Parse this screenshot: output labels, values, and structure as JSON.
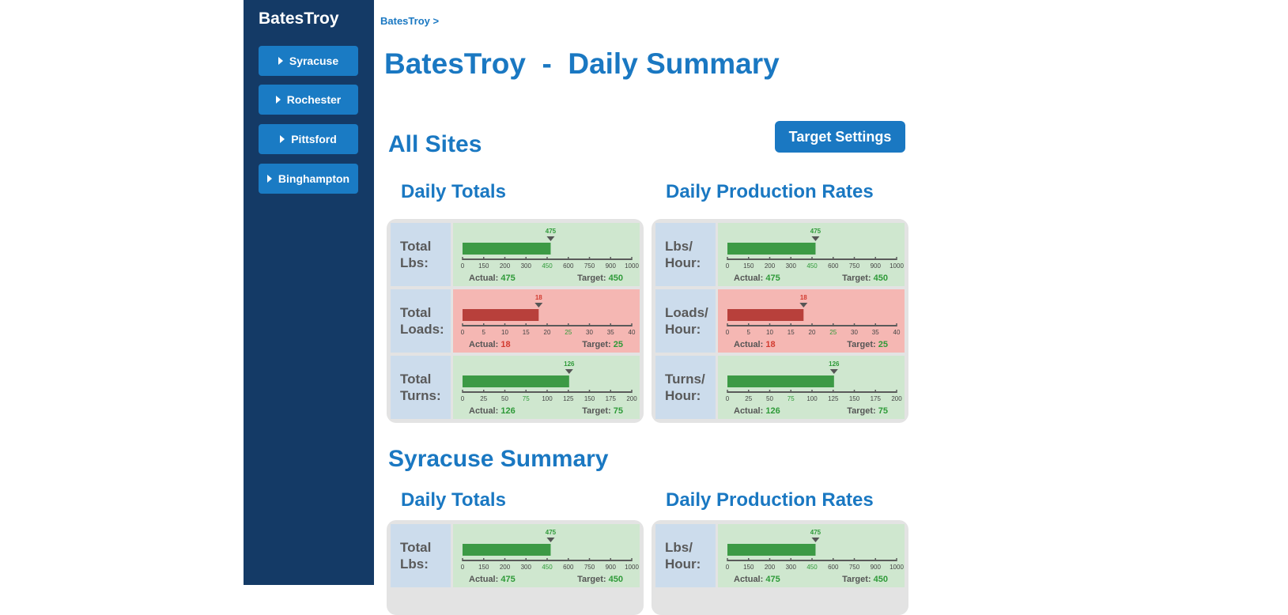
{
  "sidebar": {
    "brand": "BatesTroy",
    "items": [
      {
        "label": "Syracuse"
      },
      {
        "label": "Rochester"
      },
      {
        "label": "Pittsford"
      },
      {
        "label": "Binghampton"
      }
    ]
  },
  "breadcrumb": "BatesTroy >",
  "page_title": "BatesTroy  -  Daily Summary",
  "target_settings_label": "Target Settings",
  "actual_label": "Actual:",
  "target_label": "Target:",
  "colors": {
    "sidebar_bg": "#143a66",
    "accent": "#1a78c2",
    "good_bg": "#cfe7cf",
    "good_bar": "#3c9a45",
    "bad_bg": "#f5b7b3",
    "bad_bar": "#b8403b"
  },
  "sections": [
    {
      "title": "All Sites",
      "totals_title": "Daily Totals",
      "rates_title": "Daily Production Rates",
      "totals": [
        {
          "label1": "Total",
          "label2": "Lbs:",
          "status": "good",
          "actual": 475,
          "target": 450,
          "ticks": [
            0,
            150,
            200,
            300,
            450,
            600,
            750,
            900,
            1000
          ],
          "actual_text": "475",
          "target_text": "450"
        },
        {
          "label1": "Total",
          "label2": "Loads:",
          "status": "bad",
          "actual": 18,
          "target": 25,
          "ticks": [
            0,
            5,
            10,
            15,
            20,
            25,
            30,
            35,
            40
          ],
          "actual_text": "18",
          "target_text": "25"
        },
        {
          "label1": "Total",
          "label2": "Turns:",
          "status": "good",
          "actual": 126,
          "target": 75,
          "ticks": [
            0,
            25,
            50,
            75,
            100,
            125,
            150,
            175,
            200
          ],
          "actual_text": "126",
          "target_text": "75"
        }
      ],
      "rates": [
        {
          "label1": "Lbs/",
          "label2": "Hour:",
          "status": "good",
          "actual": 475,
          "target": 450,
          "ticks": [
            0,
            150,
            200,
            300,
            450,
            600,
            750,
            900,
            1000
          ],
          "actual_text": "475",
          "target_text": "450"
        },
        {
          "label1": "Loads/",
          "label2": "Hour:",
          "status": "bad",
          "actual": 18,
          "target": 25,
          "ticks": [
            0,
            5,
            10,
            15,
            20,
            25,
            30,
            35,
            40
          ],
          "actual_text": "18",
          "target_text": "25"
        },
        {
          "label1": "Turns/",
          "label2": "Hour:",
          "status": "good",
          "actual": 126,
          "target": 75,
          "ticks": [
            0,
            25,
            50,
            75,
            100,
            125,
            150,
            175,
            200
          ],
          "actual_text": "126",
          "target_text": "75"
        }
      ]
    },
    {
      "title": "Syracuse Summary",
      "totals_title": "Daily Totals",
      "rates_title": "Daily Production Rates",
      "totals": [
        {
          "label1": "Total",
          "label2": "Lbs:",
          "status": "good",
          "actual": 475,
          "target": 450,
          "ticks": [
            0,
            150,
            200,
            300,
            450,
            600,
            750,
            900,
            1000
          ],
          "actual_text": "475",
          "target_text": "450"
        }
      ],
      "rates": [
        {
          "label1": "Lbs/",
          "label2": "Hour:",
          "status": "good",
          "actual": 475,
          "target": 450,
          "ticks": [
            0,
            150,
            200,
            300,
            450,
            600,
            750,
            900,
            1000
          ],
          "actual_text": "475",
          "target_text": "450"
        }
      ]
    }
  ]
}
